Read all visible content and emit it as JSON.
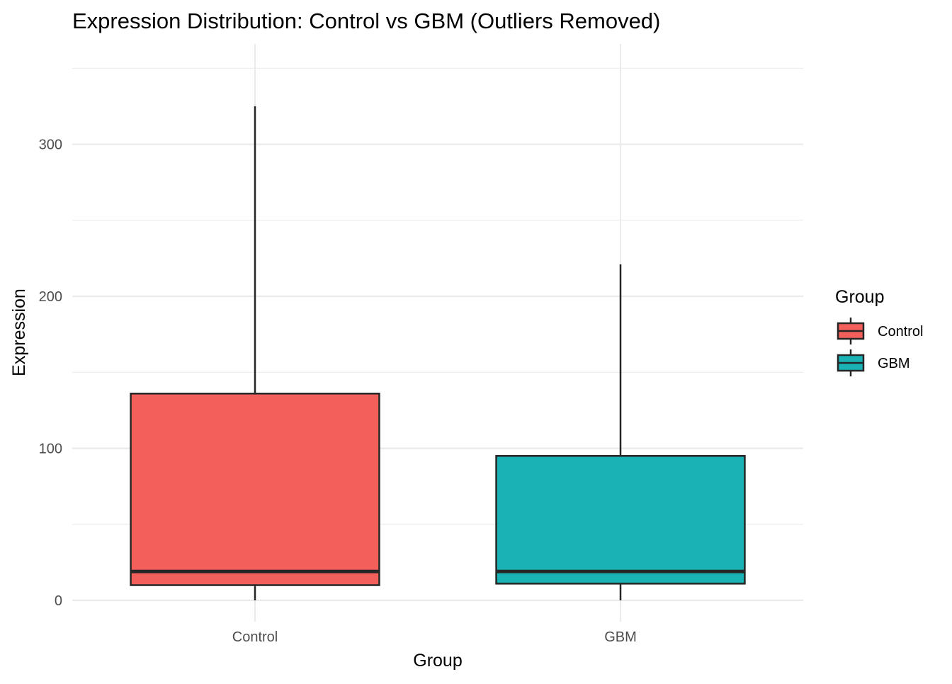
{
  "chart_data": {
    "type": "boxplot",
    "title": "Expression Distribution: Control vs GBM (Outliers Removed)",
    "xlabel": "Group",
    "ylabel": "Expression",
    "categories": [
      "Control",
      "GBM"
    ],
    "ylim": [
      -14,
      366
    ],
    "y_ticks": [
      0,
      100,
      200,
      300
    ],
    "y_tick_labels": [
      "0",
      "100",
      "200",
      "300"
    ],
    "grid": true,
    "legend": {
      "title": "Group",
      "position": "right",
      "items": [
        {
          "label": "Control",
          "color": "#F8766D"
        },
        {
          "label": "GBM",
          "color": "#00BFC4"
        }
      ]
    },
    "boxes": [
      {
        "name": "Control",
        "min": 0,
        "q1": 10,
        "median": 19,
        "q3": 136,
        "max": 325,
        "color": "#F35F5B"
      },
      {
        "name": "GBM",
        "min": 0,
        "q1": 11,
        "median": 19,
        "q3": 95,
        "max": 221,
        "color": "#19B3B6"
      }
    ]
  },
  "colors": {
    "outline": "#262626",
    "grid": "#ebebeb",
    "control": "#F35F5B",
    "gbm": "#19B3B6"
  }
}
